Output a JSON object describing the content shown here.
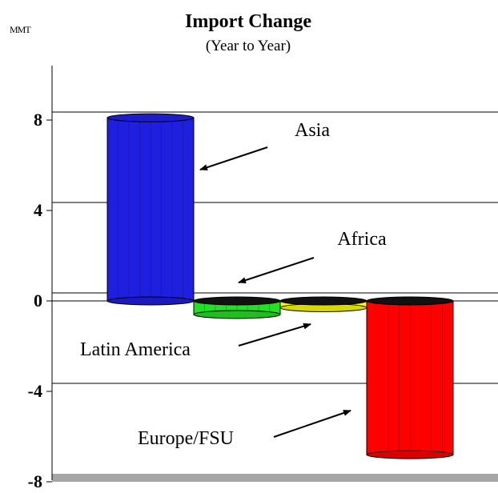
{
  "chart_data": {
    "type": "bar",
    "title": "Import Change",
    "subtitle": "(Year to Year)",
    "ylabel": "MMT",
    "ylim": [
      -8,
      10
    ],
    "yticks": [
      8,
      4,
      0,
      -4,
      -8
    ],
    "ytick_labels": [
      "8",
      "4",
      "0",
      "-4",
      "-8"
    ],
    "grid": true,
    "categories": [
      "Asia",
      "Latin America",
      "Africa",
      "Europe/FSU"
    ],
    "values": [
      8.1,
      -0.6,
      -0.3,
      -6.8
    ],
    "colors": [
      "#1f1fe0",
      "#22e022",
      "#ffff00",
      "#ff0000"
    ],
    "annotations": [
      "Asia",
      "Africa",
      "Latin America",
      "Europe/FSU"
    ]
  }
}
